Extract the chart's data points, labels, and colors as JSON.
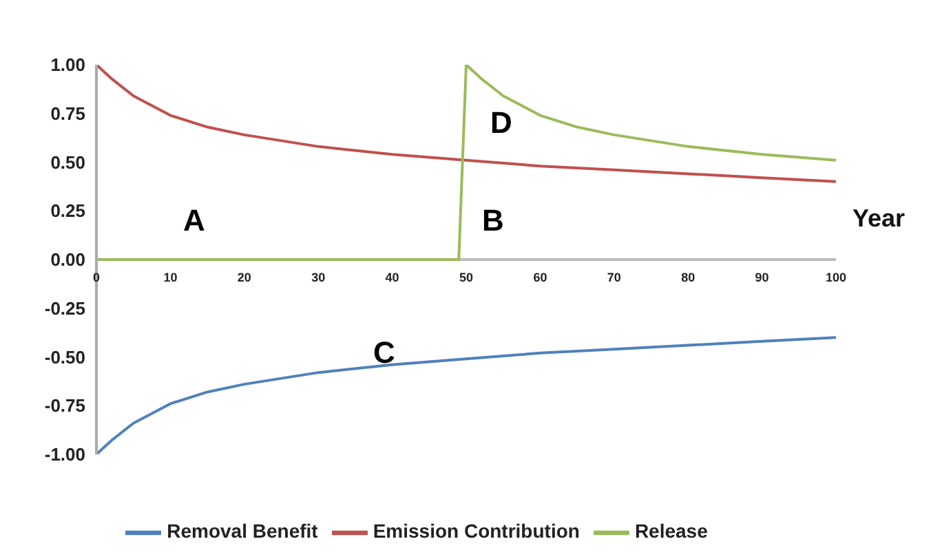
{
  "chart_data": {
    "type": "line",
    "xlabel": "Year",
    "xlim": [
      0,
      100
    ],
    "xticks": [
      0,
      10,
      20,
      30,
      40,
      50,
      60,
      70,
      80,
      90,
      100
    ],
    "ylim": [
      -1,
      1
    ],
    "yticks": [
      {
        "value": -1,
        "label": "-1.00"
      },
      {
        "value": -0.75,
        "label": "-0.75"
      },
      {
        "value": -0.5,
        "label": "-0.50"
      },
      {
        "value": -0.25,
        "label": "-0.25"
      },
      {
        "value": 0,
        "label": "0.00"
      },
      {
        "value": 0.25,
        "label": "0.25"
      },
      {
        "value": 0.5,
        "label": "0.50"
      },
      {
        "value": 0.75,
        "label": "0.75"
      },
      {
        "value": 1,
        "label": "1.00"
      }
    ],
    "grid": false,
    "legend": "bottom",
    "marker": "none",
    "line_style": "solid",
    "series": [
      {
        "name": "Removal Benefit",
        "color": "#4f81bd",
        "x": [
          0,
          2,
          5,
          10,
          15,
          20,
          30,
          40,
          50,
          60,
          70,
          80,
          90,
          100
        ],
        "values": [
          -1.0,
          -0.93,
          -0.84,
          -0.74,
          -0.68,
          -0.64,
          -0.58,
          -0.54,
          -0.51,
          -0.48,
          -0.46,
          -0.44,
          -0.42,
          -0.4
        ]
      },
      {
        "name": "Emission Contribution",
        "color": "#c0504d",
        "x": [
          0,
          2,
          5,
          10,
          15,
          20,
          30,
          40,
          50,
          60,
          70,
          80,
          90,
          100
        ],
        "values": [
          1.0,
          0.93,
          0.84,
          0.74,
          0.68,
          0.64,
          0.58,
          0.54,
          0.51,
          0.48,
          0.46,
          0.44,
          0.42,
          0.4
        ]
      },
      {
        "name": "Release",
        "color": "#9bbb59",
        "x": [
          0,
          49,
          50,
          52,
          55,
          60,
          65,
          70,
          80,
          90,
          100
        ],
        "values": [
          0,
          0,
          1.0,
          0.93,
          0.84,
          0.74,
          0.68,
          0.64,
          0.58,
          0.54,
          0.51
        ]
      }
    ],
    "annotations": [
      "A",
      "B",
      "C",
      "D"
    ]
  }
}
